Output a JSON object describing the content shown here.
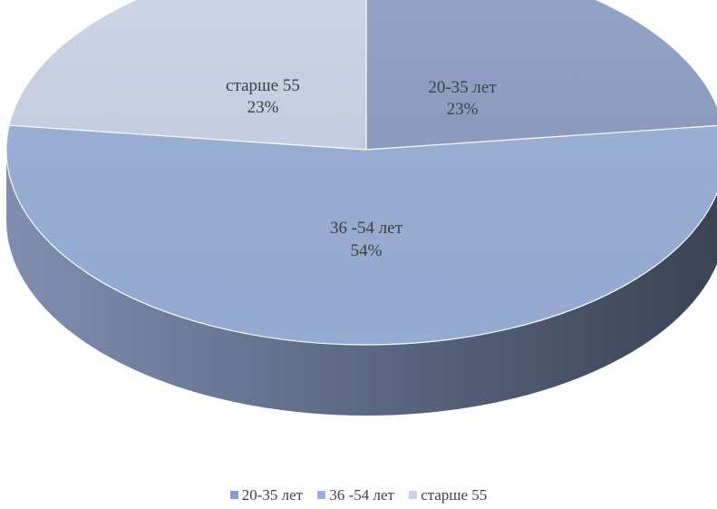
{
  "chart_data": {
    "type": "pie",
    "title": "",
    "categories": [
      "20-35 лет",
      "36 -54 лет",
      "старше 55"
    ],
    "values": [
      23,
      54,
      23
    ],
    "data_labels": [
      {
        "name": "20-35 лет",
        "value": "23%"
      },
      {
        "name": "36 -54 лет",
        "value": "54%"
      },
      {
        "name": "старше 55",
        "value": "23%"
      }
    ],
    "colors": [
      "#8b9dc3",
      "#9bb0d8",
      "#c8d3e6"
    ],
    "side_color": "#5f6c88",
    "style": "3d",
    "legend": {
      "position": "bottom",
      "items": [
        {
          "label": "20-35 лет",
          "color": "#8b9dc3"
        },
        {
          "label": "36 -54 лет",
          "color": "#9bb0d8"
        },
        {
          "label": "старше 55",
          "color": "#c8d3e6"
        }
      ]
    }
  }
}
